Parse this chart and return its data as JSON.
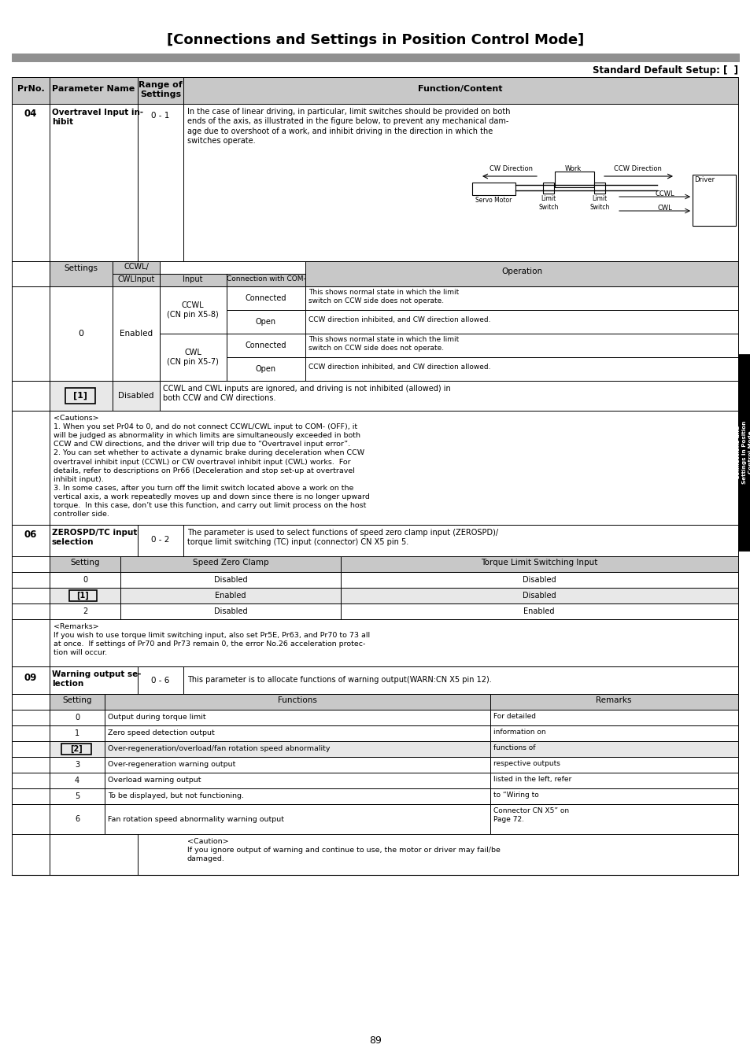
{
  "title": "[Connections and Settings in Position Control Mode]",
  "subtitle": "Standard Default Setup: [  ]",
  "page_number": "89",
  "row04_desc": "In the case of linear driving, in particular, limit switches should be provided on both\nends of the axis, as illustrated in the figure below, to prevent any mechanical dam-\nage due to overshoot of a work, and inhibit driving in the direction in which the\nswitches operate.",
  "cautions_04": "<Cautions>\n1. When you set Pr04 to 0, and do not connect CCWL/CWL input to COM- (OFF), it\nwill be judged as abnormality in which limits are simultaneously exceeded in both\nCCW and CW directions, and the driver will trip due to “Overtravel input error”.\n2. You can set whether to activate a dynamic brake during deceleration when CCW\novertravel inhibit input (CCWL) or CW overtravel inhibit input (CWL) works.  For\ndetails, refer to descriptions on Pr66 (Deceleration and stop set-up at overtravel\ninhibit input).\n3. In some cases, after you turn off the limit switch located above a work on the\nvertical axis, a work repeatedly moves up and down since there is no longer upward\ntorque.  In this case, don’t use this function, and carry out limit process on the host\ncontroller side.",
  "row06_desc": "The parameter is used to select functions of speed zero clamp input (ZEROSPD)/\ntorque limit switching (TC) input (connector) CN X5 pin 5.",
  "row06_table_data": [
    [
      "0",
      "Disabled",
      "Disabled"
    ],
    [
      "[1]",
      "Enabled",
      "Disabled"
    ],
    [
      "2",
      "Disabled",
      "Enabled"
    ]
  ],
  "remarks_06": "<Remarks>\nIf you wish to use torque limit switching input, also set Pr5E, Pr63, and Pr70 to 73 all\nat once.  If settings of Pr70 and Pr73 remain 0, the error No.26 acceleration protec-\ntion will occur.",
  "row09_desc": "This parameter is to allocate functions of warning output(WARN:CN X5 pin 12).",
  "row09_table_data": [
    [
      "0",
      "Output during torque limit",
      "For detailed"
    ],
    [
      "1",
      "Zero speed detection output",
      "information on"
    ],
    [
      "[2]",
      "Over-regeneration/overload/fan rotation speed abnormality",
      "functions of"
    ],
    [
      "3",
      "Over-regeneration warning output",
      "respective outputs"
    ],
    [
      "4",
      "Overload warning output",
      "listed in the left, refer"
    ],
    [
      "5",
      "To be displayed, but not functioning.",
      "to “Wiring to"
    ],
    [
      "6",
      "Fan rotation speed abnormality warning output",
      "Connector CN X5” on\nPage 72."
    ]
  ],
  "caution_09": "<Caution>\nIf you ignore output of warning and continue to use, the motor or driver may fail/be\ndamaged.",
  "bg_header": "#c8c8c8",
  "bg_white": "#ffffff",
  "bg_light": "#e8e8e8"
}
